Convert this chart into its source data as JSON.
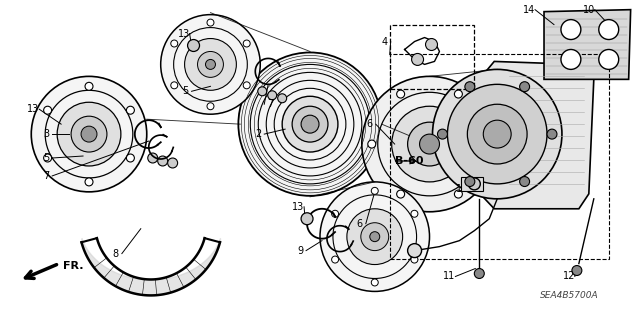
{
  "bg_color": "#ffffff",
  "fig_width": 6.4,
  "fig_height": 3.19,
  "dpi": 100,
  "watermark": "SEA4B5700A",
  "line_color": "#111111",
  "text_color": "#111111"
}
